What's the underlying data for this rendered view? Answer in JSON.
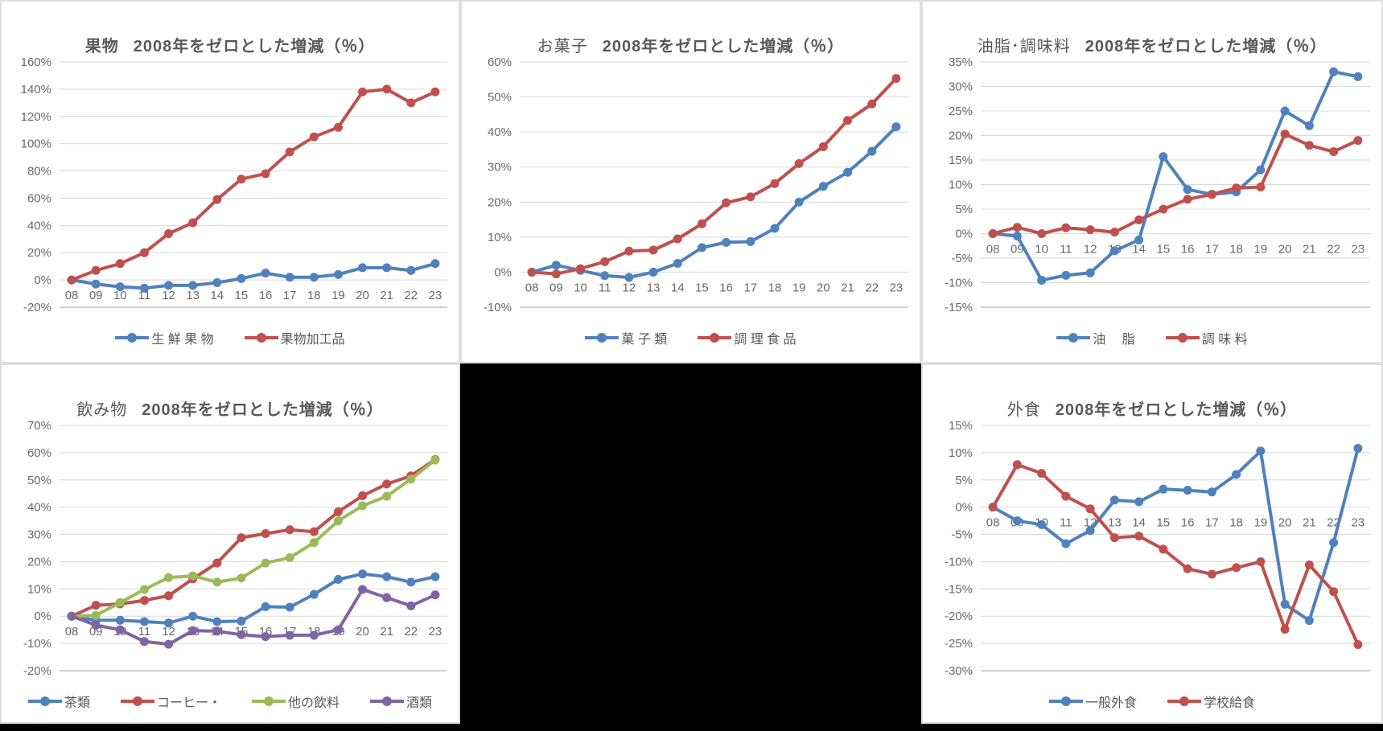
{
  "colors": {
    "blue": "#4F81BD",
    "red": "#C0504D",
    "green": "#9BBB59",
    "purple": "#8064A2",
    "grid": "#D9D9D9",
    "axis_line": "#BFBFBF",
    "axis_text": "#696969",
    "title_text": "#595959",
    "panel_bg": "#FFFFFF",
    "panel_border": "#DEDEDE",
    "page_bg": "#000000"
  },
  "chart_data": [
    {
      "type": "line",
      "title_prefix": "果物",
      "title_main": "2008年をゼロとした増減（％）",
      "title_prefix_bold": true,
      "categories": [
        "08",
        "09",
        "10",
        "11",
        "12",
        "13",
        "14",
        "15",
        "16",
        "17",
        "18",
        "19",
        "20",
        "21",
        "22",
        "23"
      ],
      "ylim": [
        -20,
        160
      ],
      "ystep": 20,
      "grid": true,
      "legend_position": "bottom",
      "series": [
        {
          "name": "生 鮮 果 物",
          "color_key": "blue",
          "values": [
            0,
            -3,
            -5,
            -6,
            -4,
            -4,
            -2,
            1,
            5,
            2,
            2,
            4,
            9,
            9,
            7,
            12
          ]
        },
        {
          "name": "果物加工品",
          "color_key": "red",
          "values": [
            0,
            7,
            12,
            20,
            34,
            42,
            59,
            74,
            78,
            94,
            105,
            112,
            138,
            140,
            130,
            138
          ]
        }
      ]
    },
    {
      "type": "line",
      "title_prefix": "お菓子",
      "title_main": "2008年をゼロとした増減（％）",
      "title_prefix_bold": false,
      "categories": [
        "08",
        "09",
        "10",
        "11",
        "12",
        "13",
        "14",
        "15",
        "16",
        "17",
        "18",
        "19",
        "20",
        "21",
        "22",
        "23"
      ],
      "ylim": [
        -10,
        60
      ],
      "ystep": 10,
      "grid": true,
      "legend_position": "bottom",
      "series": [
        {
          "name": "菓 子 類",
          "color_key": "blue",
          "values": [
            0,
            2,
            0.5,
            -1,
            -1.5,
            0,
            2.5,
            7,
            8.5,
            8.7,
            12.5,
            20,
            24.5,
            28.5,
            34.5,
            41.5
          ]
        },
        {
          "name": "調 理 食 品",
          "color_key": "red",
          "values": [
            0,
            -0.5,
            1,
            3,
            6,
            6.3,
            9.5,
            13.8,
            19.8,
            21.5,
            25.3,
            31,
            35.8,
            43.3,
            48,
            55.3
          ]
        }
      ]
    },
    {
      "type": "line",
      "title_prefix": "油脂･調味料",
      "title_main": "2008年をゼロとした増減（％）",
      "title_prefix_bold": false,
      "categories": [
        "08",
        "09",
        "10",
        "11",
        "12",
        "13",
        "14",
        "15",
        "16",
        "17",
        "18",
        "19",
        "20",
        "21",
        "22",
        "23"
      ],
      "ylim": [
        -15,
        35
      ],
      "ystep": 5,
      "grid": true,
      "legend_position": "bottom",
      "series": [
        {
          "name": "油　 脂",
          "color_key": "blue",
          "values": [
            0,
            -0.5,
            -9.5,
            -8.5,
            -8,
            -3.5,
            -1.3,
            15.7,
            9,
            8,
            8.5,
            13,
            25,
            22,
            33,
            32
          ]
        },
        {
          "name": "調 味 料",
          "color_key": "red",
          "values": [
            0,
            1.3,
            0,
            1.2,
            0.8,
            0.3,
            2.8,
            5,
            7,
            8,
            9.3,
            9.5,
            20.3,
            18,
            16.7,
            19
          ]
        }
      ]
    },
    {
      "type": "line",
      "title_prefix": "飲み物",
      "title_main": "2008年をゼロとした増減（％）",
      "title_prefix_bold": false,
      "categories": [
        "08",
        "09",
        "10",
        "11",
        "12",
        "13",
        "14",
        "15",
        "16",
        "17",
        "18",
        "19",
        "20",
        "21",
        "22",
        "23"
      ],
      "ylim": [
        -20,
        70
      ],
      "ystep": 10,
      "grid": true,
      "legend_position": "bottom",
      "series": [
        {
          "name": "茶類",
          "color_key": "blue",
          "values": [
            0,
            -1.5,
            -1.5,
            -2,
            -2.5,
            0,
            -2,
            -1.8,
            3.5,
            3.3,
            8,
            13.5,
            15.5,
            14.5,
            12.5,
            14.5
          ]
        },
        {
          "name": "コーヒー・",
          "color_key": "red",
          "values": [
            0,
            4,
            4.5,
            5.8,
            7.5,
            13.7,
            19.5,
            28.8,
            30.3,
            31.7,
            31,
            38.3,
            44.2,
            48.5,
            51.5,
            57.5
          ]
        },
        {
          "name": "他の飲料",
          "color_key": "green",
          "values": [
            0,
            0.3,
            5,
            9.8,
            14.2,
            14.8,
            12.5,
            14,
            19.5,
            21.5,
            27,
            35,
            40.5,
            44,
            50.3,
            57.3
          ]
        },
        {
          "name": "酒類",
          "color_key": "purple",
          "values": [
            0,
            -3.3,
            -5,
            -9.3,
            -10.3,
            -5.3,
            -5.5,
            -6.8,
            -7.5,
            -7,
            -7,
            -5,
            9.8,
            6.8,
            3.8,
            7.8
          ]
        }
      ]
    },
    {
      "type": "line",
      "title_prefix": "外食",
      "title_main": "2008年をゼロとした増減（％）",
      "title_prefix_bold": false,
      "categories": [
        "08",
        "09",
        "10",
        "11",
        "12",
        "13",
        "14",
        "15",
        "16",
        "17",
        "18",
        "19",
        "20",
        "21",
        "22",
        "23"
      ],
      "ylim": [
        -30,
        15
      ],
      "ystep": 5,
      "grid": true,
      "legend_position": "bottom",
      "series": [
        {
          "name": "一般外食",
          "color_key": "blue",
          "values": [
            0,
            -2.5,
            -3.2,
            -6.7,
            -4.3,
            1.3,
            1,
            3.3,
            3.1,
            2.8,
            6,
            10.3,
            -17.8,
            -20.8,
            -6.5,
            10.8
          ]
        },
        {
          "name": "学校給食",
          "color_key": "red",
          "values": [
            0,
            7.8,
            6.2,
            2,
            -0.3,
            -5.6,
            -5.3,
            -7.7,
            -11.3,
            -12.3,
            -11.1,
            -10,
            -22.4,
            -10.6,
            -15.5,
            -25.2
          ]
        }
      ]
    }
  ]
}
